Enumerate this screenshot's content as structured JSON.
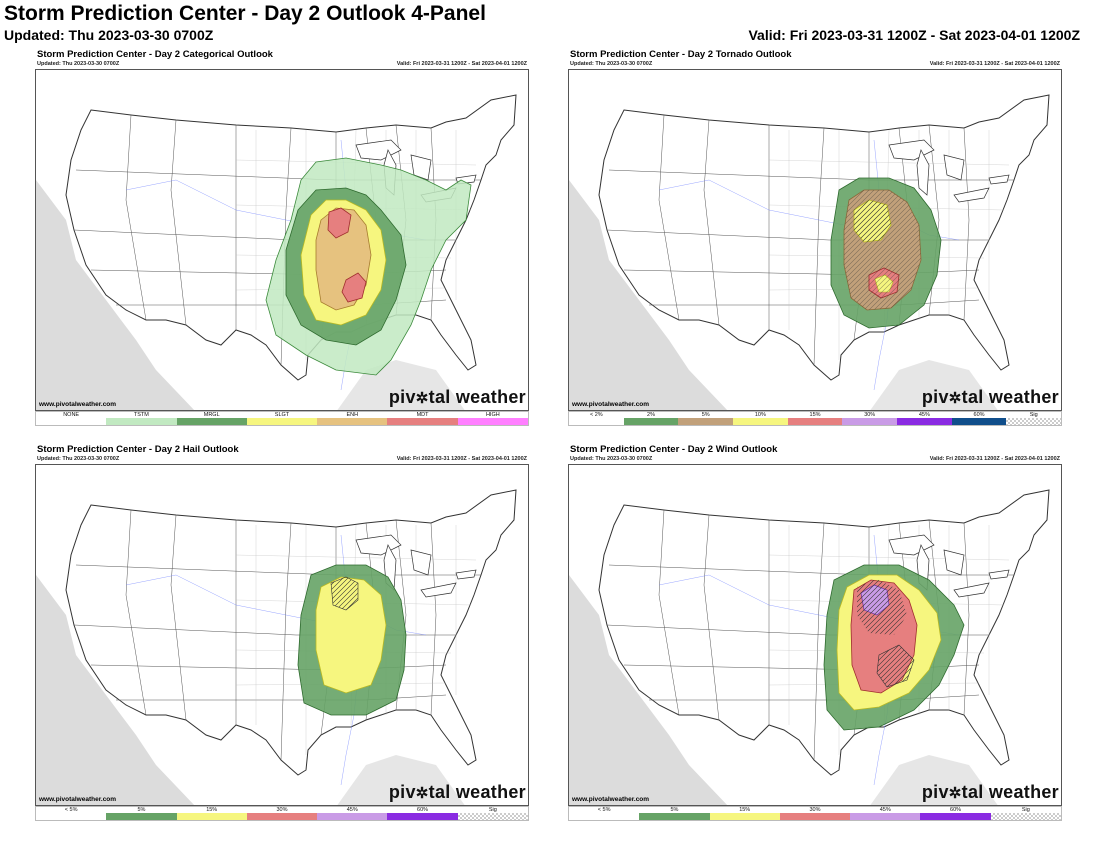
{
  "header": {
    "title": "Storm Prediction Center - Day 2 Outlook 4-Panel",
    "updated": "Updated: Thu 2023-03-30 0700Z",
    "valid": "Valid: Fri 2023-03-31 1200Z - Sat 2023-04-01 1200Z"
  },
  "common": {
    "updated": "Updated: Thu 2023-03-30 0700Z",
    "valid": "Valid: Fri 2023-03-31 1200Z - Sat 2023-04-01 1200Z",
    "site": "www.pivotalweather.com",
    "wm_left": "piv",
    "wm_right": "tal weather"
  },
  "panels": {
    "categorical": {
      "title": "Storm Prediction Center - Day 2 Categorical Outlook",
      "legend": [
        {
          "label": "NONE",
          "color": "#ffffff"
        },
        {
          "label": "TSTM",
          "color": "#c1e9c1"
        },
        {
          "label": "MRGL",
          "color": "#66a366"
        },
        {
          "label": "SLGT",
          "color": "#f6f67f"
        },
        {
          "label": "ENH",
          "color": "#e6c27f"
        },
        {
          "label": "MDT",
          "color": "#e67f7f"
        },
        {
          "label": "HIGH",
          "color": "#ff7fff"
        }
      ]
    },
    "tornado": {
      "title": "Storm Prediction Center - Day 2 Tornado Outlook",
      "legend": [
        {
          "label": "< 2%",
          "color": "#ffffff"
        },
        {
          "label": "2%",
          "color": "#66a366"
        },
        {
          "label": "5%",
          "color": "#c1a07a"
        },
        {
          "label": "10%",
          "color": "#f6f67f"
        },
        {
          "label": "15%",
          "color": "#e67f7f"
        },
        {
          "label": "30%",
          "color": "#c99be6"
        },
        {
          "label": "45%",
          "color": "#8a2be2"
        },
        {
          "label": "60%",
          "color": "#104e8b"
        },
        {
          "label": "Sig",
          "color": "hatch"
        }
      ]
    },
    "hail": {
      "title": "Storm Prediction Center - Day 2 Hail Outlook",
      "legend": [
        {
          "label": "< 5%",
          "color": "#ffffff"
        },
        {
          "label": "5%",
          "color": "#66a366"
        },
        {
          "label": "15%",
          "color": "#f6f67f"
        },
        {
          "label": "30%",
          "color": "#e67f7f"
        },
        {
          "label": "45%",
          "color": "#c99be6"
        },
        {
          "label": "60%",
          "color": "#8a2be2"
        },
        {
          "label": "Sig",
          "color": "hatch"
        }
      ]
    },
    "wind": {
      "title": "Storm Prediction Center - Day 2 Wind Outlook",
      "legend": [
        {
          "label": "< 5%",
          "color": "#ffffff"
        },
        {
          "label": "5%",
          "color": "#66a366"
        },
        {
          "label": "15%",
          "color": "#f6f67f"
        },
        {
          "label": "30%",
          "color": "#e67f7f"
        },
        {
          "label": "45%",
          "color": "#c99be6"
        },
        {
          "label": "60%",
          "color": "#8a2be2"
        },
        {
          "label": "Sig",
          "color": "hatch"
        }
      ]
    }
  }
}
